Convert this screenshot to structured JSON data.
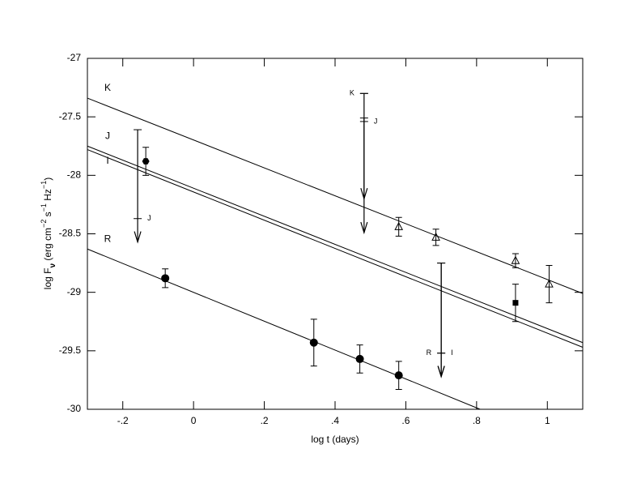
{
  "chart_data": {
    "type": "scatter",
    "xlabel": "log t (days)",
    "ylabel": [
      {
        "text": "log F",
        "shift": null
      },
      {
        "text": "ν",
        "shift": "sub"
      },
      {
        "text": "  (erg  cm",
        "shift": null
      },
      {
        "text": "−2",
        "shift": "super"
      },
      {
        "text": " s",
        "shift": null
      },
      {
        "text": "−1",
        "shift": "super"
      },
      {
        "text": "  Hz",
        "shift": null
      },
      {
        "text": "−1",
        "shift": "super"
      },
      {
        "text": ")",
        "shift": null
      }
    ],
    "xlim": [
      -0.3,
      1.1
    ],
    "ylim": [
      -30,
      -27
    ],
    "xticks": [
      {
        "value": -0.2,
        "label": "-.2"
      },
      0,
      {
        "value": 0.2,
        "label": ".2"
      },
      {
        "value": 0.4,
        "label": ".4"
      },
      {
        "value": 0.6,
        "label": ".6"
      },
      {
        "value": 0.8,
        "label": ".8"
      },
      1
    ],
    "yticks": [
      -30,
      -29.5,
      -29,
      -28.5,
      -28,
      -27.5,
      -27
    ],
    "color": "#000000",
    "fits": [
      {
        "name": "K",
        "x": [
          -0.3,
          1.1
        ],
        "values": [
          -27.34,
          -29.01
        ],
        "label_position": "above"
      },
      {
        "name": "J",
        "x": [
          -0.3,
          1.1
        ],
        "values": [
          -27.75,
          -29.43
        ],
        "label_position": "above"
      },
      {
        "name": "I",
        "x": [
          -0.3,
          1.1
        ],
        "values": [
          -27.78,
          -29.47
        ],
        "label_position": "below"
      },
      {
        "name": "R",
        "x": [
          -0.3,
          0.81
        ],
        "values": [
          -28.63,
          -30
        ],
        "label_position": "above"
      }
    ],
    "series": [
      {
        "marker": "triangle",
        "x": [
          0.58,
          0.685,
          0.91,
          1.005
        ],
        "values": [
          -28.44,
          -28.53,
          -28.73,
          -28.93
        ],
        "errors": [
          0.08,
          0.07,
          0.06,
          0.16
        ]
      },
      {
        "marker": "square",
        "x": [
          0.91
        ],
        "values": [
          -29.09
        ],
        "errors": [
          0.16
        ]
      },
      {
        "marker": "circle",
        "x": [
          -0.08,
          0.34,
          0.47,
          0.58
        ],
        "values": [
          -28.88,
          -29.43,
          -29.57,
          -29.71
        ],
        "errors": [
          0.08,
          0.2,
          0.12,
          0.12
        ]
      },
      {
        "marker": "hexagon",
        "x": [
          -0.135
        ],
        "values": [
          -27.88
        ],
        "errors": [
          0.12
        ]
      }
    ],
    "upper_limits": [
      {
        "label": "J",
        "x": -0.158,
        "top": -27.61,
        "level": -28.37,
        "end": -28.57,
        "label_side": "right"
      },
      {
        "label": "K",
        "x": 0.482,
        "top": -27.3,
        "level": -27.3,
        "end": -28.2,
        "label_side": "left"
      },
      {
        "label": "J",
        "x": 0.482,
        "top": -27.51,
        "level": -27.54,
        "end": -28.49,
        "label_side": "right"
      },
      {
        "label": "R",
        "x": 0.7,
        "top": -28.75,
        "level": -29.52,
        "end": -29.72,
        "label_side": "left"
      },
      {
        "label": "I",
        "x": 0.7,
        "top": -28.75,
        "level": -29.52,
        "end": -29.72,
        "label_side": "right"
      }
    ]
  }
}
